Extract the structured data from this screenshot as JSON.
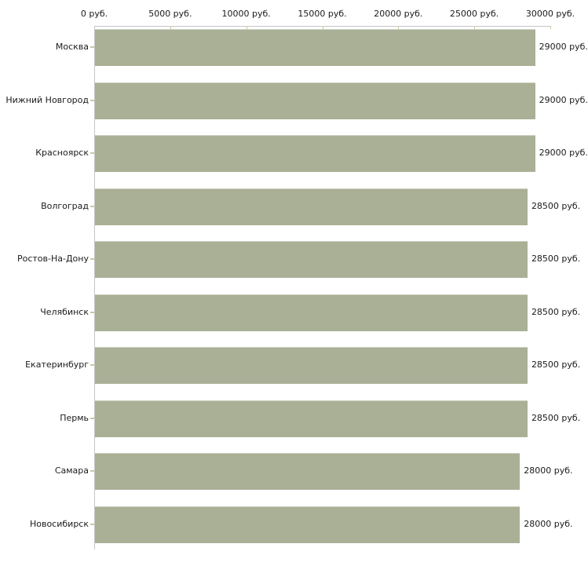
{
  "chart_data": {
    "type": "bar",
    "orientation": "horizontal",
    "title": "",
    "xlabel": "",
    "ylabel": "",
    "xlim": [
      0,
      30000
    ],
    "x_tick_step": 5000,
    "x_tick_labels": [
      "0 руб.",
      "5000 руб.",
      "10000 руб.",
      "15000 руб.",
      "20000 руб.",
      "25000 руб.",
      "30000 руб."
    ],
    "grid": false,
    "legend": "none",
    "categories": [
      "Москва",
      "Нижний Новгород",
      "Красноярск",
      "Волгоград",
      "Ростов-На-Дону",
      "Челябинск",
      "Екатеринбург",
      "Пермь",
      "Самара",
      "Новосибирск"
    ],
    "values": [
      29000,
      29000,
      29000,
      28500,
      28500,
      28500,
      28500,
      28500,
      28000,
      28000
    ],
    "value_labels": [
      "29000 руб.",
      "29000 руб.",
      "29000 руб.",
      "28500 руб.",
      "28500 руб.",
      "28500 руб.",
      "28500 руб.",
      "28500 руб.",
      "28000 руб.",
      "28000 руб."
    ],
    "colors": {
      "bar": "#a9b096",
      "axis_line": "#c6c6c6",
      "tick_mark": "#c9c99c",
      "text": "#1a1a1a",
      "background": "#ffffff"
    }
  }
}
